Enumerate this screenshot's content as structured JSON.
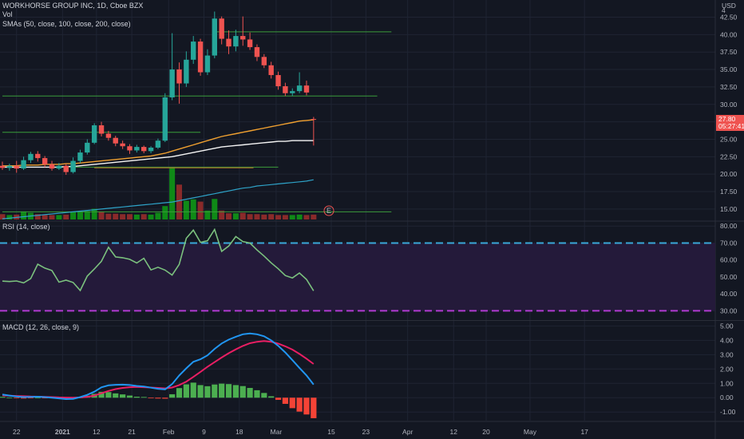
{
  "header": {
    "symbol": "WORKHORSE GROUP INC, 1D, Cboe BZX",
    "vol": "Vol",
    "smas": "SMAs (50, close, 100, close, 200, close)",
    "currency": "USD"
  },
  "price_tags": {
    "last": "27.80",
    "countdown": "05:27:41"
  },
  "earnings_marker": "E",
  "chart_data": [
    {
      "type": "candlestick",
      "ylim": [
        13.5,
        44.5
      ],
      "yticks": [
        "42.50",
        "40.00",
        "37.50",
        "35.00",
        "32.50",
        "30.00",
        "27.50",
        "25.00",
        "22.50",
        "20.00",
        "17.50",
        "15.00"
      ],
      "ytick_values": [
        42.5,
        40.0,
        37.5,
        35.0,
        32.5,
        30.0,
        27.5,
        25.0,
        22.5,
        20.0,
        17.5,
        15.0
      ],
      "top_tick_partial": "4",
      "candles": [
        {
          "o": 21.2,
          "c": 20.9,
          "h": 21.8,
          "l": 20.6
        },
        {
          "o": 20.9,
          "c": 21.2,
          "h": 21.5,
          "l": 20.5
        },
        {
          "o": 21.2,
          "c": 20.8,
          "h": 21.9,
          "l": 20.2
        },
        {
          "o": 20.8,
          "c": 22.0,
          "h": 22.5,
          "l": 20.6
        },
        {
          "o": 22.0,
          "c": 22.9,
          "h": 23.2,
          "l": 21.6
        },
        {
          "o": 22.9,
          "c": 22.3,
          "h": 23.3,
          "l": 21.8
        },
        {
          "o": 22.3,
          "c": 21.4,
          "h": 22.6,
          "l": 21.0
        },
        {
          "o": 21.4,
          "c": 20.8,
          "h": 21.9,
          "l": 20.5
        },
        {
          "o": 20.8,
          "c": 21.2,
          "h": 21.6,
          "l": 20.6
        },
        {
          "o": 21.2,
          "c": 20.3,
          "h": 21.5,
          "l": 19.9
        },
        {
          "o": 20.3,
          "c": 21.9,
          "h": 22.4,
          "l": 20.1
        },
        {
          "o": 21.9,
          "c": 23.1,
          "h": 23.5,
          "l": 21.6
        },
        {
          "o": 23.1,
          "c": 24.5,
          "h": 25.0,
          "l": 22.8
        },
        {
          "o": 24.5,
          "c": 27.0,
          "h": 27.3,
          "l": 24.3
        },
        {
          "o": 27.0,
          "c": 25.8,
          "h": 27.5,
          "l": 25.4
        },
        {
          "o": 25.8,
          "c": 25.2,
          "h": 26.2,
          "l": 24.8
        },
        {
          "o": 25.2,
          "c": 24.4,
          "h": 25.5,
          "l": 24.0
        },
        {
          "o": 24.4,
          "c": 24.0,
          "h": 24.8,
          "l": 23.6
        },
        {
          "o": 24.0,
          "c": 23.4,
          "h": 24.3,
          "l": 22.9
        },
        {
          "o": 23.4,
          "c": 23.9,
          "h": 24.2,
          "l": 23.1
        },
        {
          "o": 23.9,
          "c": 23.3,
          "h": 24.1,
          "l": 23.0
        },
        {
          "o": 23.3,
          "c": 23.8,
          "h": 24.0,
          "l": 23.0
        },
        {
          "o": 23.8,
          "c": 24.8,
          "h": 25.1,
          "l": 23.6
        },
        {
          "o": 24.8,
          "c": 31.0,
          "h": 31.6,
          "l": 24.6
        },
        {
          "o": 31.0,
          "c": 35.0,
          "h": 40.2,
          "l": 30.6
        },
        {
          "o": 35.0,
          "c": 33.0,
          "h": 36.0,
          "l": 30.1
        },
        {
          "o": 33.0,
          "c": 36.4,
          "h": 37.6,
          "l": 32.5
        },
        {
          "o": 36.4,
          "c": 39.0,
          "h": 39.8,
          "l": 35.8
        },
        {
          "o": 39.0,
          "c": 34.6,
          "h": 39.4,
          "l": 34.1
        },
        {
          "o": 34.6,
          "c": 37.0,
          "h": 37.9,
          "l": 34.2
        },
        {
          "o": 37.0,
          "c": 42.3,
          "h": 43.3,
          "l": 36.6
        },
        {
          "o": 42.3,
          "c": 39.4,
          "h": 42.6,
          "l": 38.6
        },
        {
          "o": 39.4,
          "c": 38.3,
          "h": 40.6,
          "l": 37.2
        },
        {
          "o": 38.3,
          "c": 39.8,
          "h": 40.7,
          "l": 37.6
        },
        {
          "o": 39.8,
          "c": 39.3,
          "h": 42.6,
          "l": 38.4
        },
        {
          "o": 39.3,
          "c": 38.2,
          "h": 40.3,
          "l": 37.8
        },
        {
          "o": 38.2,
          "c": 36.8,
          "h": 38.6,
          "l": 36.2
        },
        {
          "o": 36.8,
          "c": 35.6,
          "h": 37.2,
          "l": 35.2
        },
        {
          "o": 35.6,
          "c": 34.2,
          "h": 36.1,
          "l": 33.7
        },
        {
          "o": 34.2,
          "c": 32.6,
          "h": 34.7,
          "l": 32.1
        },
        {
          "o": 32.6,
          "c": 31.6,
          "h": 33.1,
          "l": 31.2
        },
        {
          "o": 31.6,
          "c": 31.9,
          "h": 32.3,
          "l": 31.2
        },
        {
          "o": 31.9,
          "c": 32.7,
          "h": 34.6,
          "l": 31.6
        },
        {
          "o": 32.7,
          "c": 31.7,
          "h": 33.4,
          "l": 31.3
        },
        {
          "o": 27.9,
          "c": 27.8,
          "h": 28.2,
          "l": 24.1
        }
      ],
      "sma_orange": [
        21.2,
        21.2,
        21.2,
        21.3,
        21.3,
        21.3,
        21.4,
        21.4,
        21.4,
        21.5,
        21.5,
        21.6,
        21.7,
        21.8,
        21.9,
        22.0,
        22.1,
        22.2,
        22.3,
        22.4,
        22.5,
        22.6,
        22.8,
        23.0,
        23.3,
        23.6,
        23.9,
        24.2,
        24.5,
        24.8,
        25.1,
        25.4,
        25.6,
        25.8,
        26.0,
        26.2,
        26.4,
        26.6,
        26.8,
        27.0,
        27.2,
        27.4,
        27.6,
        27.7,
        27.8
      ],
      "sma_white": [
        21.0,
        21.0,
        21.0,
        21.0,
        21.0,
        21.0,
        21.0,
        21.0,
        21.0,
        21.1,
        21.1,
        21.2,
        21.3,
        21.4,
        21.5,
        21.6,
        21.7,
        21.8,
        21.9,
        22.0,
        22.1,
        22.2,
        22.3,
        22.4,
        22.5,
        22.7,
        22.9,
        23.1,
        23.3,
        23.5,
        23.7,
        23.9,
        24.0,
        24.1,
        24.2,
        24.3,
        24.4,
        24.5,
        24.6,
        24.7,
        24.7,
        24.8,
        24.8,
        24.8,
        24.8
      ],
      "sma_blue": [
        13.6,
        13.7,
        13.8,
        13.9,
        14.0,
        14.1,
        14.2,
        14.3,
        14.4,
        14.5,
        14.6,
        14.7,
        14.8,
        14.9,
        15.0,
        15.1,
        15.2,
        15.3,
        15.4,
        15.5,
        15.6,
        15.7,
        15.8,
        15.9,
        16.0,
        16.2,
        16.4,
        16.6,
        16.8,
        17.0,
        17.2,
        17.4,
        17.6,
        17.8,
        18.0,
        18.1,
        18.3,
        18.4,
        18.5,
        18.6,
        18.7,
        18.8,
        18.9,
        19.0,
        19.2
      ],
      "hlines": [
        {
          "y": 40.4,
          "x_start": 30,
          "x_end": 55
        },
        {
          "y": 31.2,
          "x_start": 0,
          "x_end": 53
        },
        {
          "y": 26.0,
          "x_start": 0,
          "x_end": 28
        },
        {
          "y": 21.0,
          "x_start": 0,
          "x_end": 39
        },
        {
          "y": 14.6,
          "x_start": 0,
          "x_end": 55
        }
      ],
      "volume": [
        1.2,
        1.0,
        1.1,
        1.8,
        1.5,
        1.2,
        1.0,
        1.0,
        1.0,
        1.1,
        1.8,
        1.7,
        1.9,
        2.4,
        1.8,
        1.3,
        1.3,
        1.2,
        1.2,
        1.1,
        1.2,
        1.1,
        1.5,
        3.0,
        11.6,
        7.8,
        4.2,
        4.5,
        4.0,
        2.0,
        4.6,
        2.0,
        1.4,
        1.4,
        1.5,
        1.2,
        1.2,
        1.1,
        1.2,
        1.0,
        1.0,
        1.0,
        1.1,
        1.0,
        1.1
      ]
    },
    {
      "type": "line",
      "title": "RSI (14, close)",
      "ylim": [
        25,
        82
      ],
      "yticks": [
        "80.00",
        "70.00",
        "60.00",
        "50.00",
        "40.00",
        "30.00"
      ],
      "ytick_values": [
        80,
        70,
        60,
        50,
        40,
        30
      ],
      "bands": [
        30,
        70
      ],
      "values": [
        47.5,
        47.3,
        47.6,
        46.5,
        49.0,
        57.5,
        55.2,
        53.8,
        46.9,
        48.1,
        46.7,
        42.0,
        50.5,
        54.7,
        59.2,
        67.5,
        61.8,
        61.3,
        60.4,
        58.2,
        61.0,
        54.1,
        55.7,
        54.0,
        51.1,
        57.4,
        72.8,
        77.6,
        70.4,
        71.3,
        78.0,
        65.1,
        68.2,
        73.8,
        70.9,
        70.0,
        65.9,
        62.3,
        58.3,
        54.8,
        50.8,
        49.4,
        52.3,
        48.5,
        41.8
      ]
    },
    {
      "type": "bar",
      "title": "MACD (12, 26, close, 9)",
      "ylim": [
        -1.6,
        5.3
      ],
      "yticks": [
        "5.00",
        "4.00",
        "3.00",
        "2.00",
        "1.00",
        "0.00",
        "-1.00"
      ],
      "ytick_values": [
        5,
        4,
        3,
        2,
        1,
        0,
        -1
      ],
      "macd": [
        0.22,
        0.15,
        0.08,
        0.04,
        0.05,
        0.07,
        0.04,
        0.0,
        -0.05,
        -0.1,
        -0.08,
        0.04,
        0.2,
        0.42,
        0.72,
        0.86,
        0.9,
        0.91,
        0.88,
        0.82,
        0.78,
        0.7,
        0.62,
        0.58,
        0.95,
        1.55,
        2.05,
        2.5,
        2.68,
        2.95,
        3.4,
        3.78,
        4.05,
        4.25,
        4.42,
        4.48,
        4.42,
        4.28,
        4.0,
        3.62,
        3.15,
        2.62,
        2.08,
        1.55,
        0.92
      ],
      "signal": [
        0.16,
        0.14,
        0.12,
        0.1,
        0.08,
        0.07,
        0.06,
        0.04,
        0.02,
        0.01,
        0.0,
        0.02,
        0.06,
        0.15,
        0.31,
        0.47,
        0.6,
        0.68,
        0.73,
        0.75,
        0.73,
        0.71,
        0.68,
        0.65,
        0.71,
        0.88,
        1.12,
        1.45,
        1.8,
        2.15,
        2.48,
        2.8,
        3.1,
        3.37,
        3.61,
        3.8,
        3.9,
        3.95,
        3.9,
        3.77,
        3.58,
        3.35,
        3.05,
        2.72,
        2.35
      ],
      "histogram": [
        0.06,
        0.01,
        -0.04,
        -0.06,
        -0.03,
        0.0,
        -0.02,
        -0.04,
        -0.07,
        -0.11,
        -0.08,
        0.02,
        0.14,
        0.27,
        0.41,
        0.39,
        0.3,
        0.23,
        0.15,
        0.07,
        0.05,
        -0.01,
        -0.06,
        -0.07,
        0.24,
        0.67,
        0.93,
        1.05,
        0.88,
        0.8,
        0.92,
        0.98,
        0.95,
        0.88,
        0.81,
        0.68,
        0.52,
        0.33,
        0.1,
        -0.15,
        -0.43,
        -0.73,
        -0.97,
        -1.17,
        -1.43
      ]
    }
  ],
  "x_axis": {
    "labels": [
      {
        "text": "22",
        "i": 2
      },
      {
        "text": "2021",
        "i": 8.5,
        "bold": true
      },
      {
        "text": "12",
        "i": 13.3
      },
      {
        "text": "21",
        "i": 18.3
      },
      {
        "text": "Feb",
        "i": 23.5
      },
      {
        "text": "9",
        "i": 28.5
      },
      {
        "text": "18",
        "i": 33.5
      },
      {
        "text": "Mar",
        "i": 38.7
      },
      {
        "text": "15",
        "i": 46.5
      },
      {
        "text": "23",
        "i": 51.4
      },
      {
        "text": "Apr",
        "i": 57.3
      },
      {
        "text": "12",
        "i": 63.8
      },
      {
        "text": "20",
        "i": 68.4
      },
      {
        "text": "May",
        "i": 74.6
      },
      {
        "text": "17",
        "i": 82.3
      }
    ]
  },
  "colors": {
    "up": "#26a69a",
    "down": "#ef5350",
    "vol_up": "#0f8a17",
    "vol_down": "#8a2a2a",
    "sma_orange": "#f0a030",
    "sma_white": "#f5f5f5",
    "sma_blue": "#2ea3c8",
    "hline": "#3b9b3b",
    "rsi": "#7bc17e",
    "rsi_band_fill": "#241a3a",
    "rsi_upper": "#3aa8d8",
    "rsi_lower": "#b03ad0",
    "macd": "#2196f3",
    "signal": "#e91e63",
    "hist_up": "#4caf50",
    "hist_down": "#f44336",
    "grid": "#1f2433",
    "sep": "#2a2e39",
    "price_tag": "#ef5350"
  }
}
